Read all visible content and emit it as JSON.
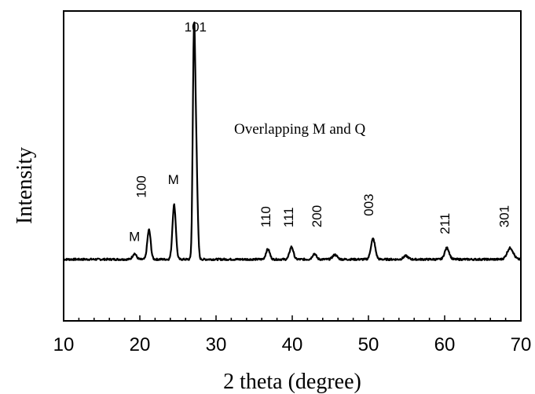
{
  "chart_data": {
    "type": "line",
    "xlabel": "2 theta (degree)",
    "ylabel": "Intensity",
    "xlim": [
      10,
      70
    ],
    "x_ticks": [
      10,
      20,
      30,
      40,
      50,
      60,
      70
    ],
    "grid": false,
    "legend": "none",
    "line_color": "#000000",
    "annotation": "Overlapping M and Q",
    "peak_labels": [
      {
        "text": "M",
        "x": 19.3,
        "y": 0.08,
        "rotated": false
      },
      {
        "text": "100",
        "x": 20.8,
        "y": 0.27,
        "rotated": true
      },
      {
        "text": "M",
        "x": 24.4,
        "y": 0.33,
        "rotated": false
      },
      {
        "text": "101",
        "x": 27.3,
        "y": 1.0,
        "rotated": false
      },
      {
        "text": "110",
        "x": 37.1,
        "y": 0.14,
        "rotated": true
      },
      {
        "text": "111",
        "x": 40.1,
        "y": 0.14,
        "rotated": true
      },
      {
        "text": "200",
        "x": 43.8,
        "y": 0.14,
        "rotated": true
      },
      {
        "text": "003",
        "x": 50.6,
        "y": 0.19,
        "rotated": true
      },
      {
        "text": "211",
        "x": 60.6,
        "y": 0.11,
        "rotated": true
      },
      {
        "text": "301",
        "x": 68.4,
        "y": 0.14,
        "rotated": true
      }
    ],
    "baseline": 0.0,
    "peaks": [
      {
        "x": 19.3,
        "height": 0.025,
        "width": 0.25
      },
      {
        "x": 21.2,
        "height": 0.13,
        "width": 0.22
      },
      {
        "x": 24.5,
        "height": 0.24,
        "width": 0.22
      },
      {
        "x": 27.1,
        "height": 0.93,
        "width": 0.16
      },
      {
        "x": 27.4,
        "height": 0.42,
        "width": 0.18
      },
      {
        "x": 36.8,
        "height": 0.045,
        "width": 0.25
      },
      {
        "x": 39.9,
        "height": 0.055,
        "width": 0.25
      },
      {
        "x": 42.9,
        "height": 0.025,
        "width": 0.25
      },
      {
        "x": 45.6,
        "height": 0.02,
        "width": 0.3
      },
      {
        "x": 50.6,
        "height": 0.09,
        "width": 0.28
      },
      {
        "x": 54.9,
        "height": 0.015,
        "width": 0.3
      },
      {
        "x": 60.3,
        "height": 0.05,
        "width": 0.3
      },
      {
        "x": 68.6,
        "height": 0.05,
        "width": 0.4
      }
    ],
    "ylim": [
      -0.27,
      1.09
    ]
  }
}
